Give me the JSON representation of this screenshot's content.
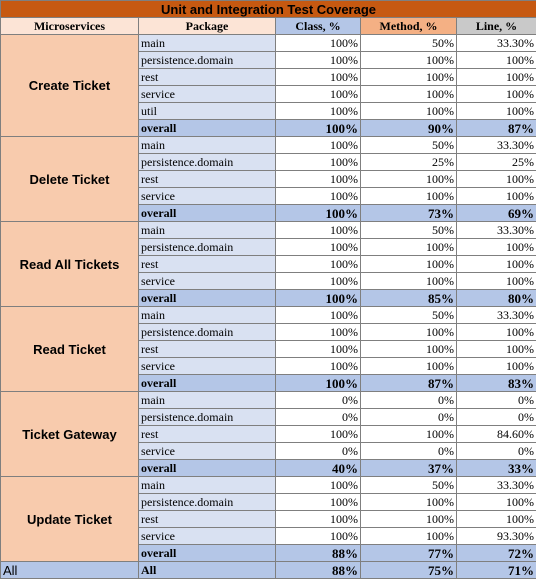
{
  "title": "Unit and Integration Test Coverage",
  "headers": {
    "microservices": "Microservices",
    "package": "Package",
    "class": "Class, %",
    "method": "Method, %",
    "line": "Line, %"
  },
  "groups": [
    {
      "name": "Create Ticket",
      "rows": [
        {
          "package": "main",
          "class": "100%",
          "method": "50%",
          "line": "33.30%"
        },
        {
          "package": "persistence.domain",
          "class": "100%",
          "method": "100%",
          "line": "100%"
        },
        {
          "package": "rest",
          "class": "100%",
          "method": "100%",
          "line": "100%"
        },
        {
          "package": "service",
          "class": "100%",
          "method": "100%",
          "line": "100%"
        },
        {
          "package": "util",
          "class": "100%",
          "method": "100%",
          "line": "100%"
        }
      ],
      "overall": {
        "package": "overall",
        "class": "100%",
        "method": "90%",
        "line": "87%"
      }
    },
    {
      "name": "Delete Ticket",
      "rows": [
        {
          "package": "main",
          "class": "100%",
          "method": "50%",
          "line": "33.30%"
        },
        {
          "package": "persistence.domain",
          "class": "100%",
          "method": "25%",
          "line": "25%"
        },
        {
          "package": "rest",
          "class": "100%",
          "method": "100%",
          "line": "100%"
        },
        {
          "package": "service",
          "class": "100%",
          "method": "100%",
          "line": "100%"
        }
      ],
      "overall": {
        "package": "overall",
        "class": "100%",
        "method": "73%",
        "line": "69%"
      }
    },
    {
      "name": "Read All Tickets",
      "rows": [
        {
          "package": "main",
          "class": "100%",
          "method": "50%",
          "line": "33.30%"
        },
        {
          "package": "persistence.domain",
          "class": "100%",
          "method": "100%",
          "line": "100%"
        },
        {
          "package": "rest",
          "class": "100%",
          "method": "100%",
          "line": "100%"
        },
        {
          "package": "service",
          "class": "100%",
          "method": "100%",
          "line": "100%"
        }
      ],
      "overall": {
        "package": "overall",
        "class": "100%",
        "method": "85%",
        "line": "80%"
      }
    },
    {
      "name": "Read Ticket",
      "rows": [
        {
          "package": "main",
          "class": "100%",
          "method": "50%",
          "line": "33.30%"
        },
        {
          "package": "persistence.domain",
          "class": "100%",
          "method": "100%",
          "line": "100%"
        },
        {
          "package": "rest",
          "class": "100%",
          "method": "100%",
          "line": "100%"
        },
        {
          "package": "service",
          "class": "100%",
          "method": "100%",
          "line": "100%"
        }
      ],
      "overall": {
        "package": "overall",
        "class": "100%",
        "method": "87%",
        "line": "83%"
      }
    },
    {
      "name": "Ticket Gateway",
      "rows": [
        {
          "package": "main",
          "class": "0%",
          "method": "0%",
          "line": "0%"
        },
        {
          "package": "persistence.domain",
          "class": "0%",
          "method": "0%",
          "line": "0%"
        },
        {
          "package": "rest",
          "class": "100%",
          "method": "100%",
          "line": "84.60%"
        },
        {
          "package": "service",
          "class": "0%",
          "method": "0%",
          "line": "0%"
        }
      ],
      "overall": {
        "package": "overall",
        "class": "40%",
        "method": "37%",
        "line": "33%"
      }
    },
    {
      "name": "Update Ticket",
      "rows": [
        {
          "package": "main",
          "class": "100%",
          "method": "50%",
          "line": "33.30%"
        },
        {
          "package": "persistence.domain",
          "class": "100%",
          "method": "100%",
          "line": "100%"
        },
        {
          "package": "rest",
          "class": "100%",
          "method": "100%",
          "line": "100%"
        },
        {
          "package": "service",
          "class": "100%",
          "method": "100%",
          "line": "93.30%"
        }
      ],
      "overall": {
        "package": "overall",
        "class": "88%",
        "method": "77%",
        "line": "72%"
      }
    }
  ],
  "total": {
    "microservice": "All",
    "package": "All",
    "class": "88%",
    "method": "75%",
    "line": "71%"
  },
  "colors": {
    "title": "#c65911",
    "microservice_cell": "#f8cbad",
    "package_cell": "#d9e1f2",
    "overall_row": "#b4c6e7",
    "method_header": "#f4b084",
    "line_header": "#c9c9c9"
  }
}
